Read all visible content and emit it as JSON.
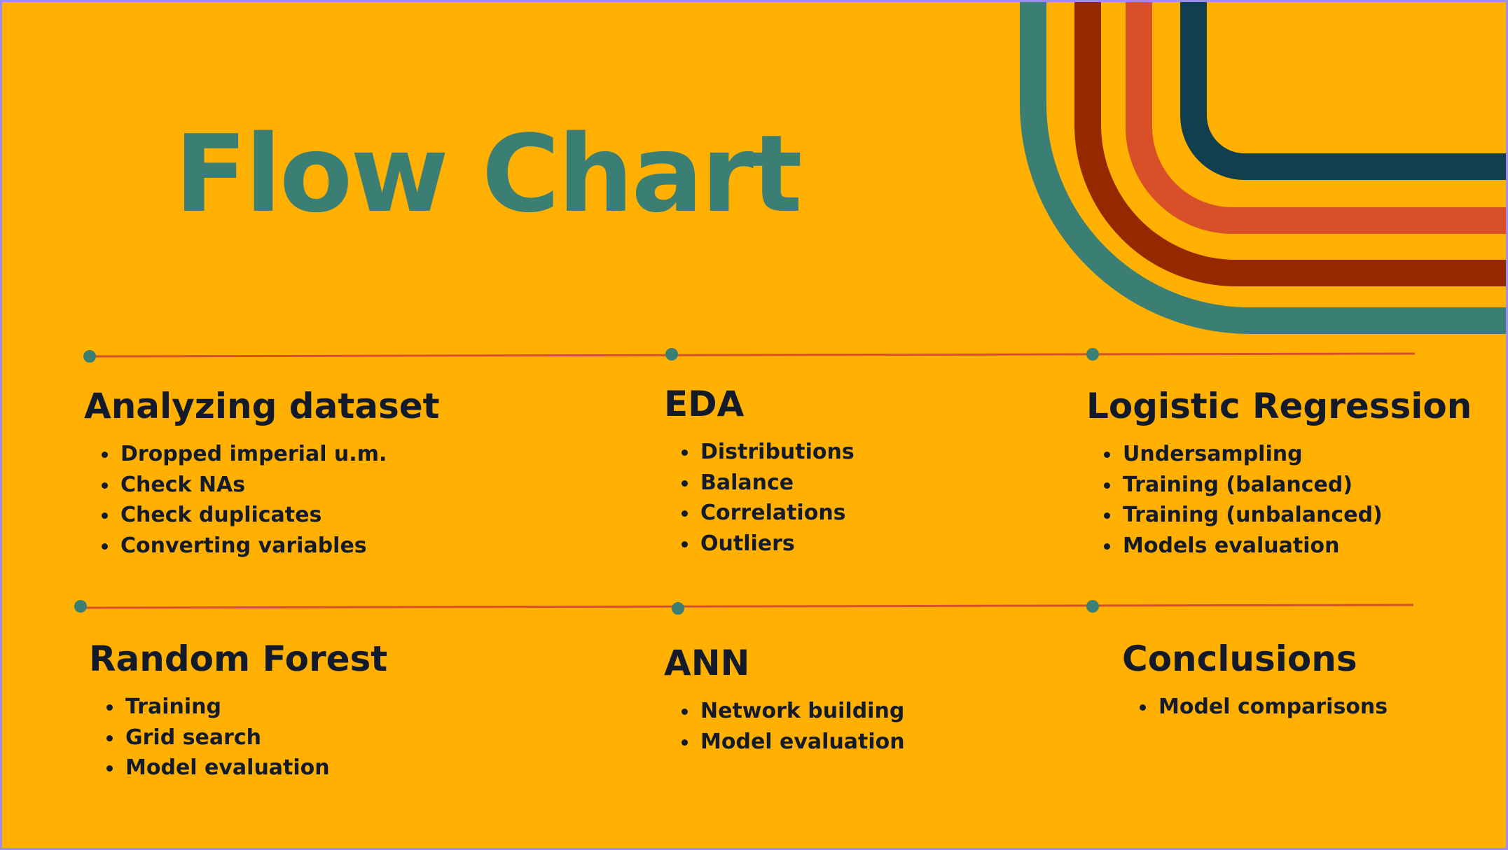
{
  "title": "Flow Chart",
  "colors": {
    "background": "#FFB000",
    "title": "#3B7F74",
    "text": "#131B2B",
    "timeline": "#D4502A",
    "node": "#3B7F74",
    "stripe_teal": "#3B7F74",
    "stripe_maroon": "#962800",
    "stripe_orange": "#D84F28",
    "stripe_navy": "#113F4E"
  },
  "sections": [
    {
      "heading": "Analyzing dataset",
      "items": [
        "Dropped imperial u.m.",
        "Check NAs",
        "Check duplicates",
        "Converting variables"
      ]
    },
    {
      "heading": "EDA",
      "items": [
        "Distributions",
        "Balance",
        "Correlations",
        "Outliers"
      ]
    },
    {
      "heading": "Logistic Regression",
      "items": [
        "Undersampling",
        "Training (balanced)",
        "Training (unbalanced)",
        "Models evaluation"
      ]
    },
    {
      "heading": "Random Forest",
      "items": [
        "Training",
        "Grid search",
        "Model evaluation"
      ]
    },
    {
      "heading": "ANN",
      "items": [
        "Network building",
        "Model evaluation"
      ]
    },
    {
      "heading": "Conclusions",
      "items": [
        "Model comparisons"
      ]
    }
  ]
}
